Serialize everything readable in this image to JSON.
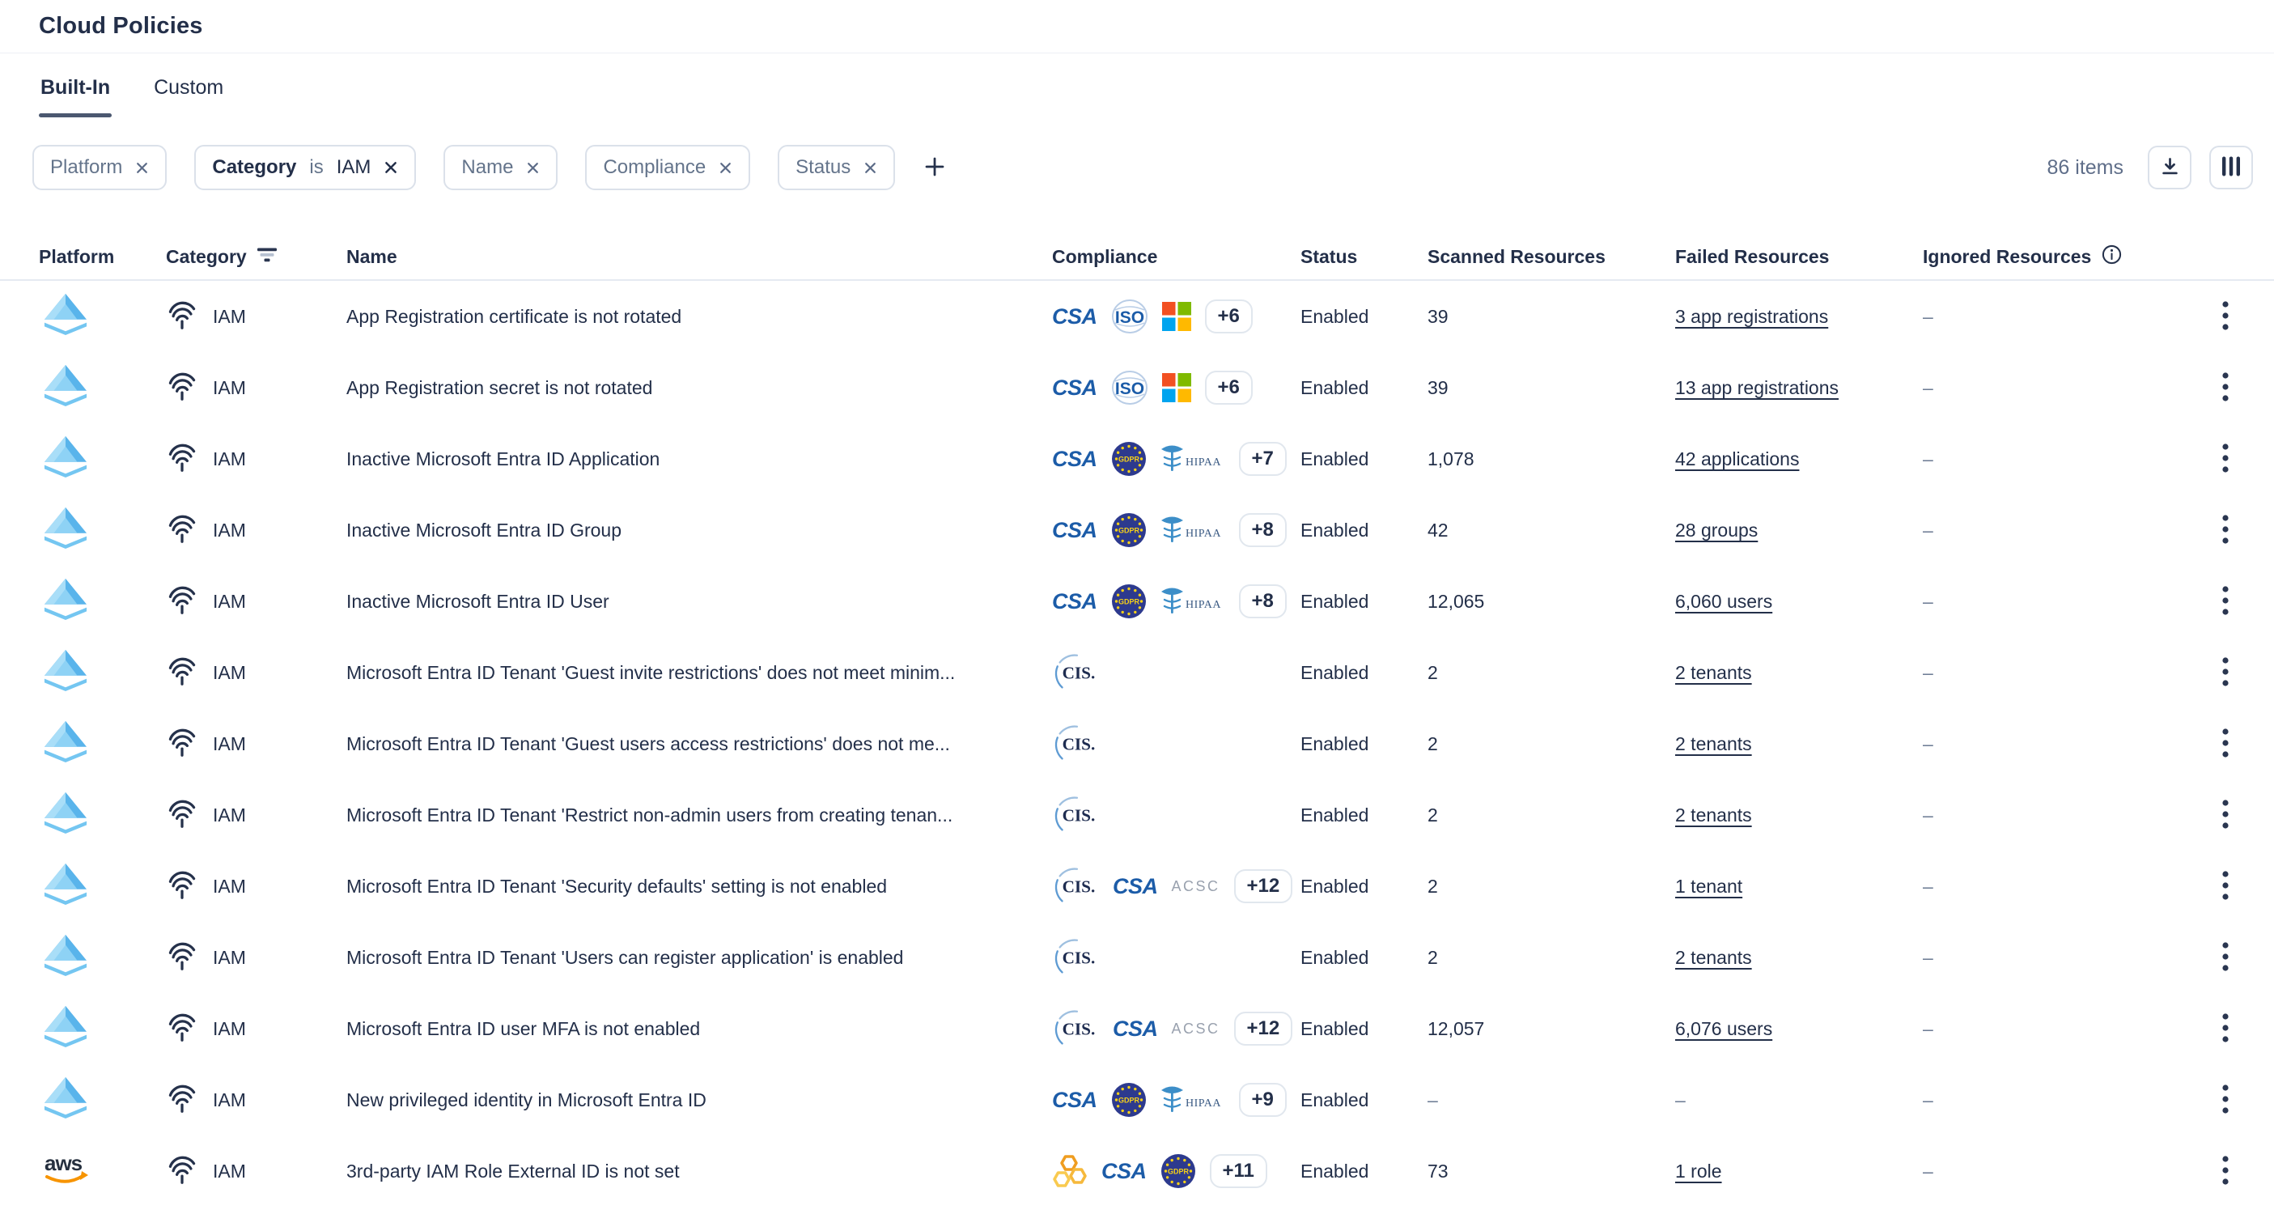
{
  "page": {
    "title": "Cloud Policies"
  },
  "tabs": [
    {
      "label": "Built-In",
      "active": true
    },
    {
      "label": "Custom",
      "active": false
    }
  ],
  "filters": {
    "chips": [
      {
        "label": "Platform"
      },
      {
        "label": "Category",
        "operator": "is",
        "value": "IAM"
      },
      {
        "label": "Name"
      },
      {
        "label": "Compliance"
      },
      {
        "label": "Status"
      }
    ],
    "add_label": "+"
  },
  "toolbar": {
    "items_count": "86 items",
    "icons": [
      "download-icon",
      "columns-icon"
    ]
  },
  "table": {
    "columns": [
      "Platform",
      "Category",
      "Name",
      "Compliance",
      "Status",
      "Scanned Resources",
      "Failed Resources",
      "Ignored Resources"
    ],
    "badge_names": {
      "csa": "CSA",
      "iso": "ISO",
      "microsoft": "Microsoft",
      "gdpr": "GDPR",
      "hipaa": "HIPAA",
      "cis": "CIS",
      "acsc": "ACSC",
      "hex": "AWS-hexagons"
    },
    "rows": [
      {
        "platform": "azure",
        "category": "IAM",
        "name": "App Registration certificate is not rotated",
        "badges": [
          "csa",
          "iso",
          "microsoft"
        ],
        "more": "+6",
        "status": "Enabled",
        "scanned": "39",
        "failed": "3 app registrations",
        "ignored": "–"
      },
      {
        "platform": "azure",
        "category": "IAM",
        "name": "App Registration secret is not rotated",
        "badges": [
          "csa",
          "iso",
          "microsoft"
        ],
        "more": "+6",
        "status": "Enabled",
        "scanned": "39",
        "failed": "13 app registrations",
        "ignored": "–"
      },
      {
        "platform": "azure",
        "category": "IAM",
        "name": "Inactive Microsoft Entra ID Application",
        "badges": [
          "csa",
          "gdpr",
          "hipaa"
        ],
        "more": "+7",
        "status": "Enabled",
        "scanned": "1,078",
        "failed": "42 applications",
        "ignored": "–"
      },
      {
        "platform": "azure",
        "category": "IAM",
        "name": "Inactive Microsoft Entra ID Group",
        "badges": [
          "csa",
          "gdpr",
          "hipaa"
        ],
        "more": "+8",
        "status": "Enabled",
        "scanned": "42",
        "failed": "28 groups",
        "ignored": "–"
      },
      {
        "platform": "azure",
        "category": "IAM",
        "name": "Inactive Microsoft Entra ID User",
        "badges": [
          "csa",
          "gdpr",
          "hipaa"
        ],
        "more": "+8",
        "status": "Enabled",
        "scanned": "12,065",
        "failed": "6,060 users",
        "ignored": "–"
      },
      {
        "platform": "azure",
        "category": "IAM",
        "name": "Microsoft Entra ID Tenant 'Guest invite restrictions' does not meet minim...",
        "badges": [
          "cis"
        ],
        "more": null,
        "status": "Enabled",
        "scanned": "2",
        "failed": "2 tenants",
        "ignored": "–"
      },
      {
        "platform": "azure",
        "category": "IAM",
        "name": "Microsoft Entra ID Tenant 'Guest users access restrictions' does not me...",
        "badges": [
          "cis"
        ],
        "more": null,
        "status": "Enabled",
        "scanned": "2",
        "failed": "2 tenants",
        "ignored": "–"
      },
      {
        "platform": "azure",
        "category": "IAM",
        "name": "Microsoft Entra ID Tenant 'Restrict non-admin users from creating tenan...",
        "badges": [
          "cis"
        ],
        "more": null,
        "status": "Enabled",
        "scanned": "2",
        "failed": "2 tenants",
        "ignored": "–"
      },
      {
        "platform": "azure",
        "category": "IAM",
        "name": "Microsoft Entra ID Tenant 'Security defaults' setting is not enabled",
        "badges": [
          "cis",
          "csa",
          "acsc"
        ],
        "more": "+12",
        "status": "Enabled",
        "scanned": "2",
        "failed": "1 tenant",
        "ignored": "–"
      },
      {
        "platform": "azure",
        "category": "IAM",
        "name": "Microsoft Entra ID Tenant 'Users can register application' is enabled",
        "badges": [
          "cis"
        ],
        "more": null,
        "status": "Enabled",
        "scanned": "2",
        "failed": "2 tenants",
        "ignored": "–"
      },
      {
        "platform": "azure",
        "category": "IAM",
        "name": "Microsoft Entra ID user MFA is not enabled",
        "badges": [
          "cis",
          "csa",
          "acsc"
        ],
        "more": "+12",
        "status": "Enabled",
        "scanned": "12,057",
        "failed": "6,076 users",
        "ignored": "–"
      },
      {
        "platform": "azure",
        "category": "IAM",
        "name": "New privileged identity in Microsoft Entra ID",
        "badges": [
          "csa",
          "gdpr",
          "hipaa"
        ],
        "more": "+9",
        "status": "Enabled",
        "scanned": "–",
        "failed": "–",
        "ignored": "–"
      },
      {
        "platform": "aws",
        "category": "IAM",
        "name": "3rd-party IAM Role External ID is not set",
        "badges": [
          "hex",
          "csa",
          "gdpr"
        ],
        "more": "+11",
        "status": "Enabled",
        "scanned": "73",
        "failed": "1 role",
        "ignored": "–"
      }
    ]
  },
  "colors": {
    "ink": "#232f49",
    "gray": "#64748b",
    "border": "#dbe1ea",
    "tab_underline": "#4b5870",
    "csa_blue": "#1c5ca8",
    "gdpr_navy": "#2d3a8e",
    "gdpr_gold": "#f7d117",
    "ms_red": "#f25022",
    "ms_green": "#7fba00",
    "ms_blue": "#00a4ef",
    "ms_yellow": "#ffb900",
    "aws_orange": "#f79400",
    "azure_blue": "#59b4eb"
  }
}
